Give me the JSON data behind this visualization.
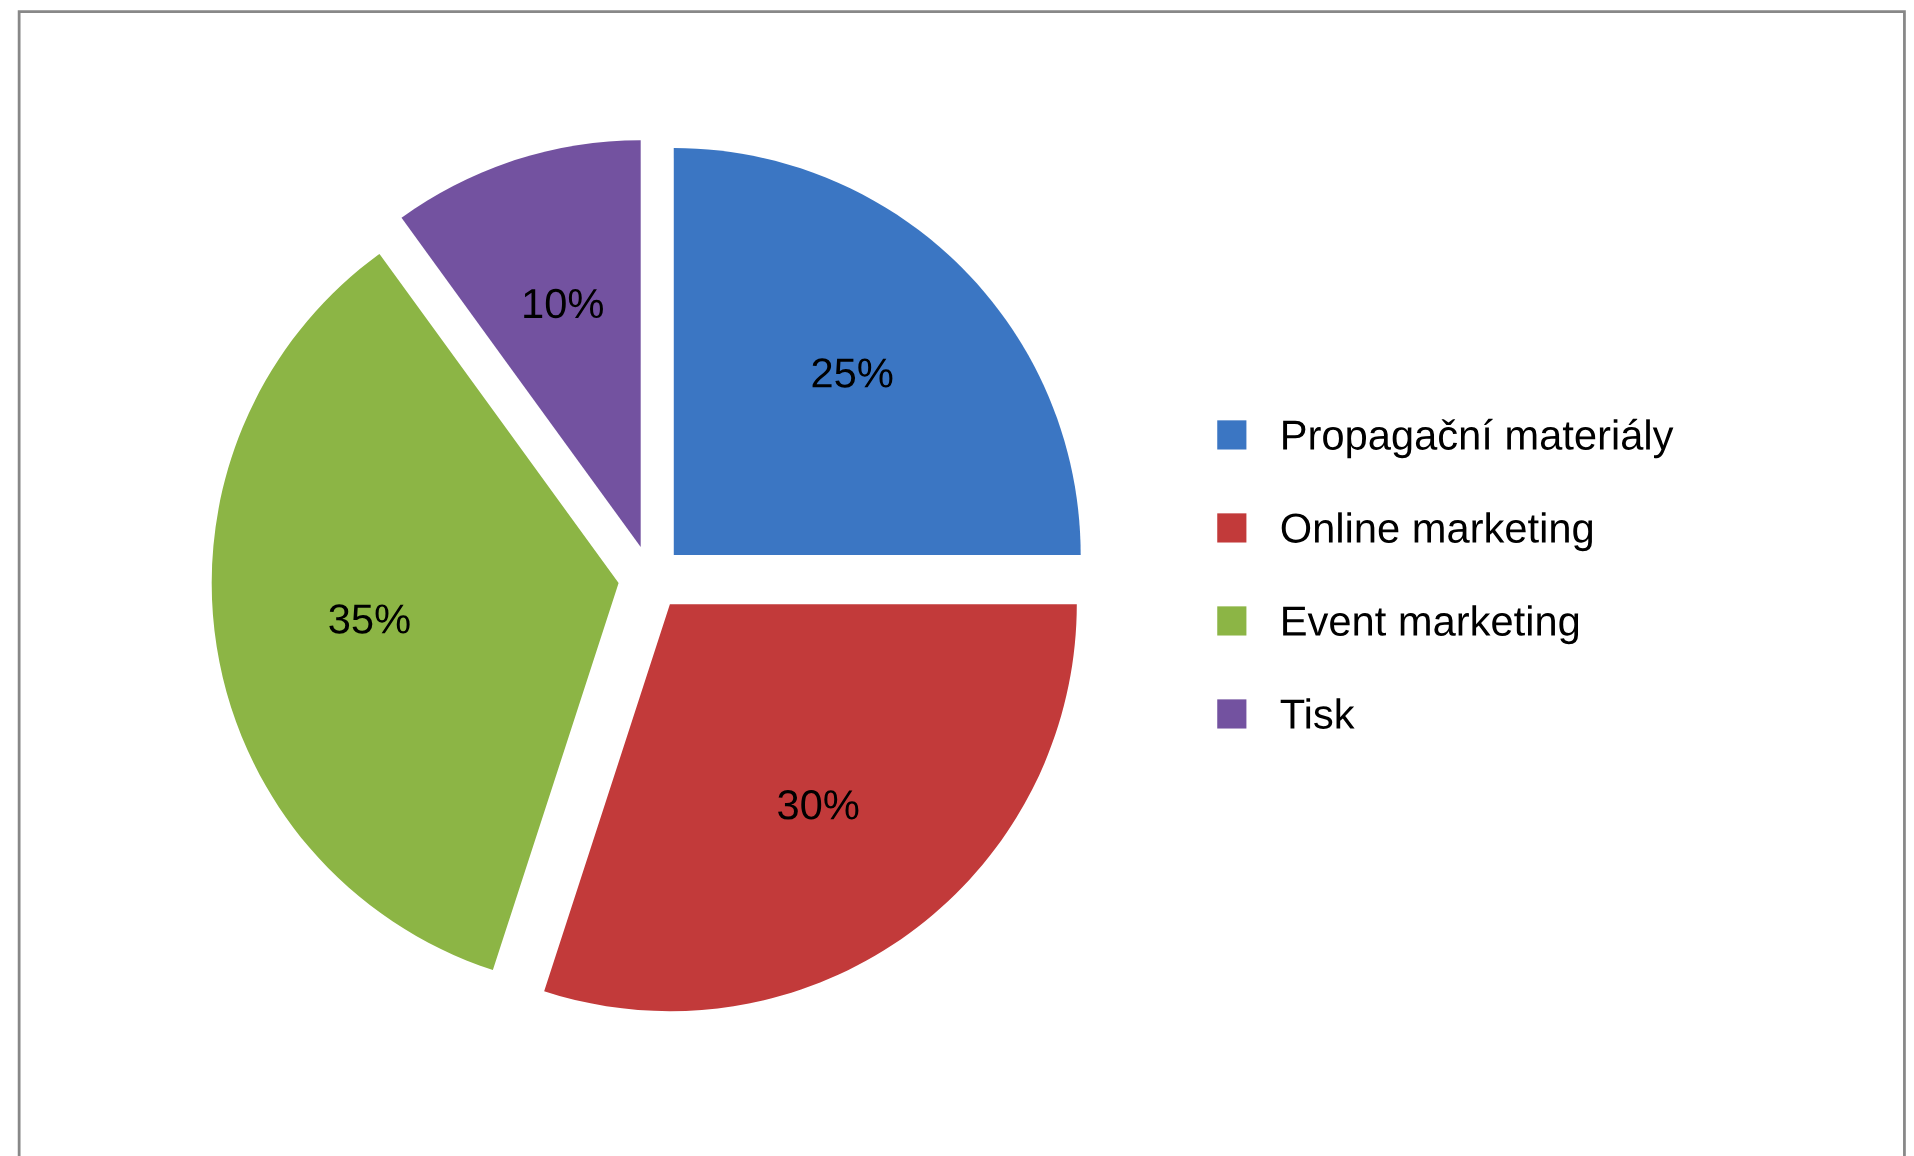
{
  "chart_data": {
    "type": "pie",
    "categories": [
      "Propagační materiály",
      "Online marketing",
      "Event marketing",
      "Tisk"
    ],
    "values": [
      25,
      30,
      35,
      10
    ],
    "colors": [
      "#3b76c3",
      "#c23a3a",
      "#8cb545",
      "#7352a0"
    ],
    "value_labels": [
      "25%",
      "30%",
      "35%",
      "10%"
    ],
    "legend": "right"
  }
}
